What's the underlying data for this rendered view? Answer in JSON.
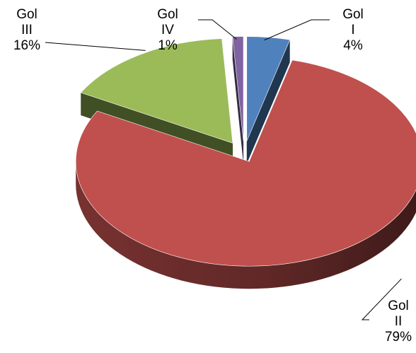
{
  "chart_data": {
    "type": "pie",
    "style": "3d-exploded",
    "slices": [
      {
        "label_lines": [
          "Gol",
          "I"
        ],
        "value": 4,
        "percent_label": "4%",
        "color": "#4F81BD"
      },
      {
        "label_lines": [
          "Gol",
          "II"
        ],
        "value": 79,
        "percent_label": "79%",
        "color": "#C0504D"
      },
      {
        "label_lines": [
          "Gol",
          "III"
        ],
        "value": 16,
        "percent_label": "16%",
        "color": "#9BBB59"
      },
      {
        "label_lines": [
          "Gol",
          "IV"
        ],
        "value": 1,
        "percent_label": "1%",
        "color": "#8064A2"
      }
    ],
    "title": "",
    "legend": "none"
  }
}
